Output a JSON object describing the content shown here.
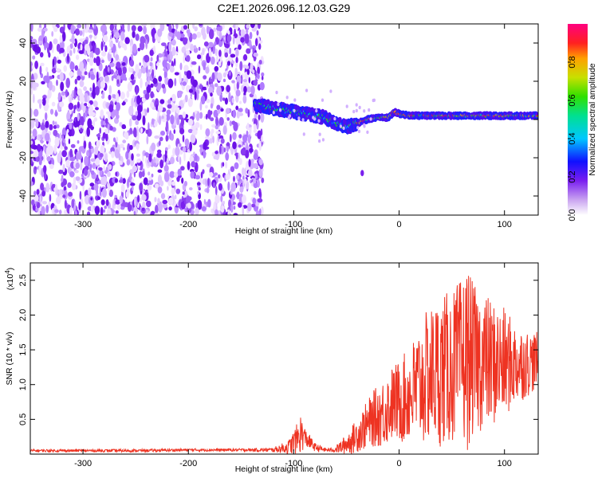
{
  "title": "C2E1.2026.096.12.03.G29",
  "chart_data": [
    {
      "type": "heatmap",
      "title": "C2E1.2026.096.12.03.G29",
      "xlabel": "Height of straight line (km)",
      "ylabel": "Frequency (Hz)",
      "xlim": [
        -350,
        132
      ],
      "ylim": [
        -50,
        50
      ],
      "x_ticks": [
        -300,
        -200,
        -100,
        0,
        100
      ],
      "x_tick_labels": [
        "-300",
        "-200",
        "-100",
        "0",
        "100"
      ],
      "y_ticks": [
        -40,
        -20,
        0,
        20,
        40
      ],
      "y_tick_labels": [
        "-40",
        "-20",
        "0",
        "20",
        "40"
      ],
      "colorbar": {
        "label": "Normalized spectral amplitude",
        "range": [
          0,
          1
        ],
        "ticks": [
          0.0,
          0.2,
          0.4,
          0.6,
          0.8
        ],
        "tick_labels": [
          "0.0",
          "0.2",
          "0.4",
          "0.6",
          "0.8"
        ]
      },
      "noise_region_x": [
        -350,
        -137
      ],
      "signal_track": {
        "x": [
          -137,
          -130,
          -120,
          -110,
          -100,
          -90,
          -80,
          -70,
          -60,
          -50,
          -40,
          -30,
          -20,
          -10,
          -5,
          0,
          10,
          20,
          40,
          60,
          80,
          100,
          110,
          120,
          132
        ],
        "frequency_hz": [
          8,
          7,
          6,
          5,
          4,
          3,
          2,
          1,
          -2,
          -4,
          -2,
          0,
          1,
          1,
          4,
          3,
          2,
          2,
          2,
          2,
          2,
          2,
          2,
          2,
          2
        ]
      },
      "isolated_blob": {
        "x": -35,
        "frequency_hz": -28
      }
    },
    {
      "type": "line",
      "xlabel": "Height of straight line (km)",
      "ylabel": "SNR (10 * v/v)",
      "y_scale_label": "(x10",
      "y_scale_exponent": "4",
      "xlim": [
        -350,
        132
      ],
      "ylim": [
        0,
        2.75
      ],
      "x_ticks": [
        -300,
        -200,
        -100,
        0,
        100
      ],
      "x_tick_labels": [
        "-300",
        "-200",
        "-100",
        "0",
        "100"
      ],
      "y_ticks": [
        0.5,
        1.0,
        1.5,
        2.0,
        2.5
      ],
      "y_tick_labels": [
        "0.5",
        "1.0",
        "1.5",
        "2.0",
        "2.5"
      ],
      "series": [
        {
          "name": "SNR",
          "color": "#ee3322",
          "envelope_x": [
            -350,
            -250,
            -200,
            -150,
            -120,
            -105,
            -98,
            -93,
            -90,
            -80,
            -70,
            -62,
            -55,
            -45,
            -35,
            -25,
            -15,
            -5,
            0,
            10,
            20,
            30,
            40,
            50,
            60,
            65,
            70,
            80,
            90,
            100,
            110,
            120,
            132
          ],
          "envelope_mean": [
            0.05,
            0.05,
            0.06,
            0.06,
            0.06,
            0.1,
            0.2,
            0.3,
            0.25,
            0.1,
            0.06,
            0.06,
            0.1,
            0.2,
            0.35,
            0.5,
            0.6,
            0.75,
            0.75,
            0.85,
            1.0,
            1.15,
            1.2,
            1.25,
            1.35,
            1.4,
            1.35,
            1.35,
            1.3,
            1.3,
            1.3,
            1.3,
            1.35
          ],
          "envelope_amplitude": [
            0.02,
            0.02,
            0.02,
            0.02,
            0.03,
            0.1,
            0.2,
            0.3,
            0.15,
            0.06,
            0.03,
            0.03,
            0.1,
            0.2,
            0.3,
            0.4,
            0.5,
            0.55,
            0.6,
            0.7,
            0.9,
            1.0,
            1.1,
            1.1,
            1.2,
            1.35,
            1.1,
            1.0,
            0.9,
            0.8,
            0.6,
            0.5,
            0.4
          ]
        }
      ]
    }
  ]
}
